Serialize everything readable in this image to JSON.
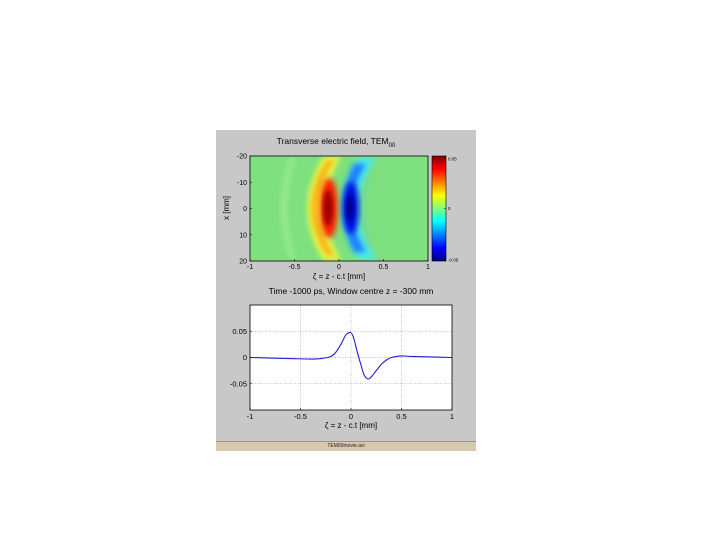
{
  "window": {
    "status_file": "TEM00movie.avi"
  },
  "chart_data": [
    {
      "type": "heatmap",
      "title": "Transverse electric field, TEM",
      "title_subscript": "00",
      "xlabel": "ζ = z - c.t [mm]",
      "ylabel": "x [mm]",
      "xlim": [
        -1,
        1
      ],
      "ylim": [
        -20,
        20
      ],
      "y_reversed": true,
      "xticks": [
        -1,
        -0.5,
        0,
        0.5,
        1
      ],
      "xtick_labels": [
        "-1",
        "-0.5",
        "0",
        "0.5",
        "1"
      ],
      "yticks": [
        -20,
        -10,
        0,
        10,
        20
      ],
      "ytick_labels": [
        "-20",
        "-10",
        "0",
        "10",
        "20"
      ],
      "colormap": "jet",
      "colorbar": {
        "range": [
          -0.05,
          0.05
        ],
        "tick_labels": [
          "0.05",
          "0",
          "-0.05"
        ],
        "tick_values": [
          0.05,
          0,
          -0.05
        ]
      },
      "field": {
        "peak_positive_xi": -0.04,
        "peak_negative_xi": 0.17,
        "peak_positive_value": 0.05,
        "peak_negative_value": -0.045,
        "shape": "crescent wavefront curving toward +ζ with increasing |x|"
      }
    },
    {
      "type": "line",
      "title": "Time -1000 ps, Window centre z = -300 mm",
      "xlabel": "ζ = z - c.t [mm]",
      "ylabel": "",
      "xlim": [
        -1,
        1
      ],
      "ylim": [
        -0.1,
        0.1
      ],
      "xticks": [
        -1,
        -0.5,
        0,
        0.5,
        1
      ],
      "xtick_labels": [
        "-1",
        "-0.5",
        "0",
        "0.5",
        "1"
      ],
      "yticks": [
        0.05,
        0,
        -0.05
      ],
      "ytick_labels": [
        "0.05",
        "0",
        "-0.05"
      ],
      "grid": true,
      "series": [
        {
          "color": "#1f1fd6",
          "x": [
            -1,
            -0.8,
            -0.6,
            -0.4,
            -0.3,
            -0.2,
            -0.15,
            -0.1,
            -0.05,
            0,
            0.03,
            0.06,
            0.1,
            0.13,
            0.17,
            0.2,
            0.25,
            0.3,
            0.35,
            0.4,
            0.5,
            0.6,
            0.8,
            1
          ],
          "y": [
            0,
            -0.001,
            -0.002,
            -0.003,
            -0.002,
            0.002,
            0.01,
            0.025,
            0.043,
            0.047,
            0.035,
            0.012,
            -0.015,
            -0.033,
            -0.041,
            -0.037,
            -0.025,
            -0.013,
            -0.005,
            0,
            0.003,
            0.002,
            0.001,
            0
          ]
        }
      ]
    }
  ]
}
